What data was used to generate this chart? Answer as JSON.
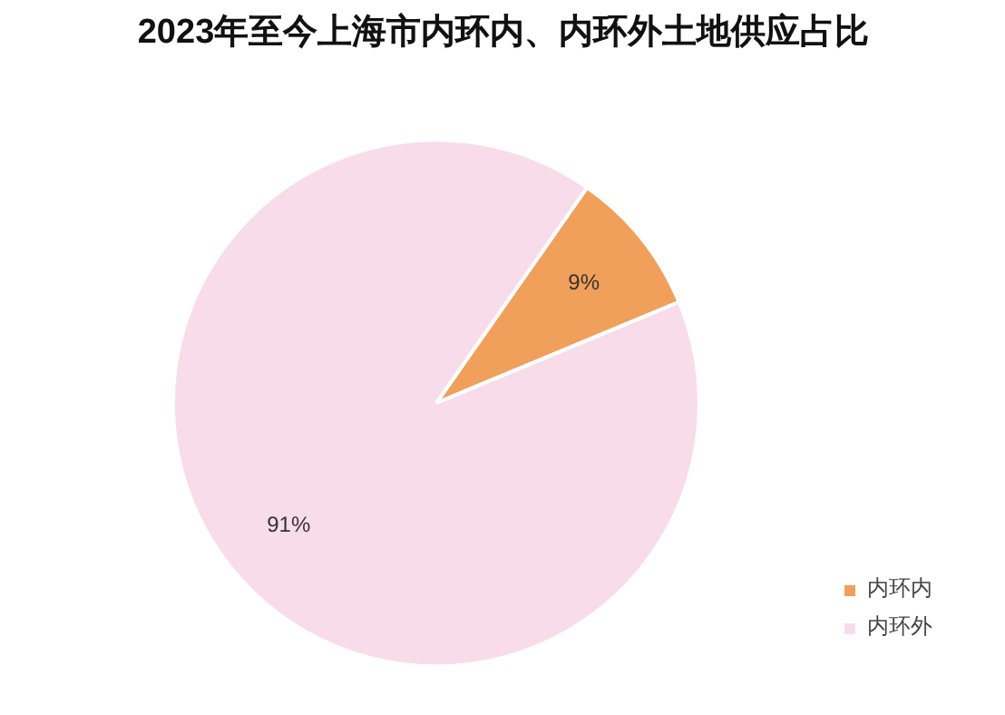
{
  "chart_data": {
    "type": "pie",
    "title": "2023年至今上海市内环内、内环外土地供应占比",
    "categories": [
      "内环内",
      "内环外"
    ],
    "values": [
      9,
      91
    ],
    "colors": [
      "#f0a05a",
      "#f8dcea"
    ],
    "value_labels": [
      "9%",
      "91%"
    ],
    "legend": "bottom right"
  }
}
